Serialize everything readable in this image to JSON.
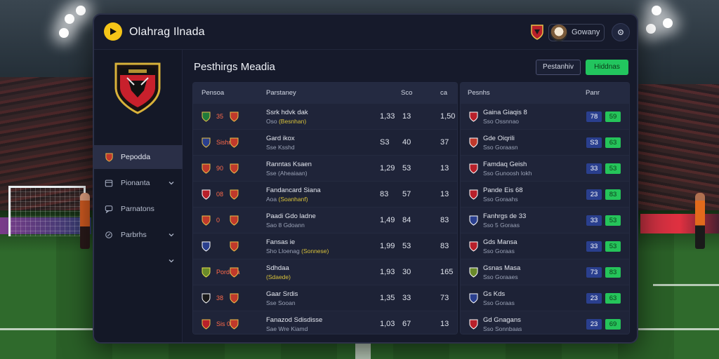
{
  "header": {
    "app_title": "Olahrag Ilnada",
    "select_value": "Gowany",
    "colors": {
      "accent": "#f5c518",
      "green": "#22c55e",
      "badge_blue": "#2a3f8e"
    },
    "icons": [
      "play-logo-icon",
      "club-crest-icon",
      "user-avatar-icon",
      "gear-icon"
    ]
  },
  "sidebar": {
    "items": [
      {
        "label": "Pepodda",
        "icon": "crest-icon",
        "active": true,
        "chevron": false
      },
      {
        "label": "Pionanta",
        "icon": "calendar-icon",
        "active": false,
        "chevron": true
      },
      {
        "label": "Parnatons",
        "icon": "chat-icon",
        "active": false,
        "chevron": false
      },
      {
        "label": "Parbrhs",
        "icon": "settings-icon",
        "active": false,
        "chevron": true
      },
      {
        "label": "",
        "icon": "",
        "active": false,
        "chevron": true
      }
    ]
  },
  "main": {
    "title": "Pesthirgs Meadia",
    "btn_outline": "Pestanhiv",
    "btn_green": "Hiddnas"
  },
  "left_table": {
    "headers": [
      "Pensoa",
      "Parstaney",
      "Sco",
      "ca"
    ],
    "rows": [
      {
        "crests": [
          "",
          "35"
        ],
        "name": "Ssrk hdvk dak",
        "sub": "Oso",
        "sub_hl": "(Besnhan)",
        "v1": "1,33",
        "v2": "13",
        "v3": "1,50",
        "v1c": "g",
        "v3c": "r"
      },
      {
        "crests": [
          "Sishnis"
        ],
        "name": "Gard ikox",
        "sub": "Sse Ksshd",
        "sub_hl": "",
        "v1": "S3",
        "v2": "40",
        "v3": "37",
        "v1c": "y",
        "v3c": ""
      },
      {
        "crests": [
          "",
          "90"
        ],
        "name": "Ranntas Ksaen",
        "sub": "Sse (Aheaiaan)",
        "sub_hl": "",
        "v1": "1,29",
        "v2": "53",
        "v3": "13",
        "v1c": "g",
        "v3c": "r"
      },
      {
        "crests": [
          "08",
          ""
        ],
        "name": "Fandancard Siana",
        "sub": "Aoa",
        "sub_hl": "(Soanhanf)",
        "v1": "83",
        "v2": "57",
        "v3": "13",
        "v1c": "g",
        "v3c": ""
      },
      {
        "crests": [
          "",
          "0"
        ],
        "name": "Paadi Gdo ladne",
        "sub": "Sao 8 Gdoann",
        "sub_hl": "",
        "v1": "1,49",
        "v2": "84",
        "v3": "83",
        "v1c": "g",
        "v3c": "r"
      },
      {
        "crests": [
          "",
          ""
        ],
        "name": "Fansas ie",
        "sub": "Sho Lloenag",
        "sub_hl": "(Sonnese)",
        "v1": "1,99",
        "v2": "53",
        "v3": "83",
        "v1c": "g",
        "v3c": "g"
      },
      {
        "crests": [
          "Pordeza"
        ],
        "name": "Sdhdaa",
        "sub": "",
        "sub_hl": "(Sdaede)",
        "v1": "1,93",
        "v2": "30",
        "v3": "165",
        "v1c": "g",
        "v3c": "r"
      },
      {
        "crests": [
          "38",
          ""
        ],
        "name": "Gaar Srdis",
        "sub": "Sse Sooan",
        "sub_hl": "",
        "v1": "1,35",
        "v2": "33",
        "v3": "73",
        "v1c": "g",
        "v3c": "r"
      },
      {
        "crests": [
          "Sis 00"
        ],
        "name": "Fanazod Sdisdisse",
        "sub": "Sae Wre Kiamd",
        "sub_hl": "",
        "v1": "1,03",
        "v2": "67",
        "v3": "13",
        "v1c": "g",
        "v3c": ""
      }
    ]
  },
  "right_table": {
    "headers": [
      "Pesnhs",
      "Panr"
    ],
    "rows": [
      {
        "name": "Gaina Giaqis 8",
        "sub": "Sso Ossnnao",
        "b1": "78",
        "b2": "59"
      },
      {
        "name": "Gde Oiqrili",
        "sub": "Sso Goraasn",
        "b1": "S3",
        "b2": "63"
      },
      {
        "name": "Famdaq Geish",
        "sub": "Sso Gunoosh lokh",
        "b1": "33",
        "b2": "53"
      },
      {
        "name": "Pande Eis 68",
        "sub": "Sso Goraahs",
        "b1": "23",
        "b2": "83"
      },
      {
        "name": "Fanhrgs de 33",
        "sub": "Sso 5 Goraas",
        "b1": "33",
        "b2": "53"
      },
      {
        "name": "Gds Mansa",
        "sub": "Sso Goraas",
        "b1": "33",
        "b2": "53"
      },
      {
        "name": "Gsnas Masa",
        "sub": "Sso Goraaes",
        "b1": "73",
        "b2": "83"
      },
      {
        "name": "Gs Kds",
        "sub": "Sso Goraas",
        "b1": "23",
        "b2": "63"
      },
      {
        "name": "Gd Gnagans",
        "sub": "Sso Sonnbaas",
        "b1": "23",
        "b2": "69"
      }
    ]
  }
}
